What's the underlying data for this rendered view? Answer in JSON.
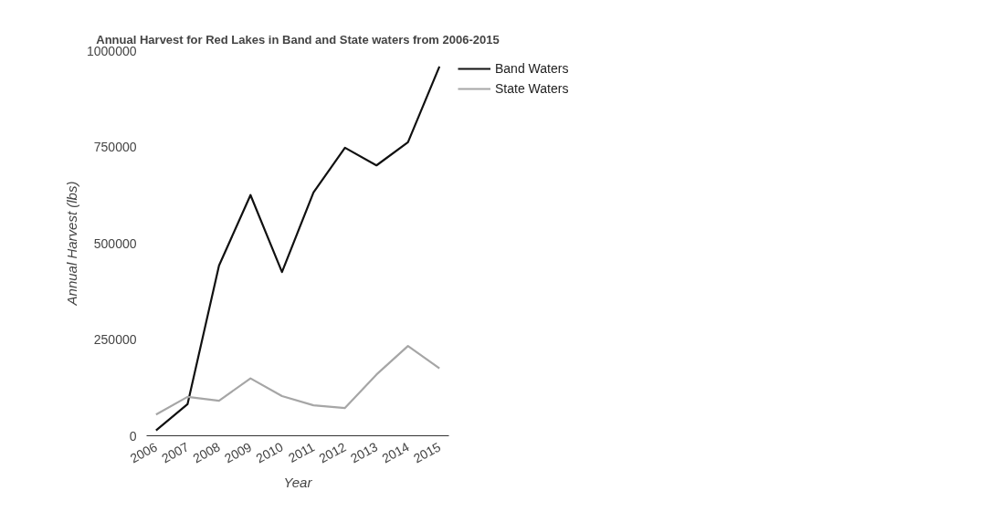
{
  "chart_data": {
    "type": "line",
    "title": "Annual Harvest for Red Lakes in Band and State waters from 2006-2015",
    "xlabel": "Year",
    "ylabel": "Annual Harvest (lbs)",
    "categories": [
      "2006",
      "2007",
      "2008",
      "2009",
      "2010",
      "2011",
      "2012",
      "2013",
      "2014",
      "2015"
    ],
    "series": [
      {
        "name": "Band Waters",
        "color": "#111111",
        "values": [
          14000,
          82000,
          442000,
          625000,
          425000,
          632000,
          748000,
          702000,
          762000,
          959000
        ]
      },
      {
        "name": "State Waters",
        "color": "#a6a6a6",
        "values": [
          55000,
          101000,
          91000,
          149000,
          103000,
          79000,
          72000,
          159000,
          233000,
          175000
        ]
      }
    ],
    "ylim": [
      0,
      1000000
    ],
    "yticks": [
      0,
      250000,
      500000,
      750000,
      1000000
    ],
    "grid": false,
    "legend": "top right",
    "marker": "none",
    "line_style": "solid"
  }
}
